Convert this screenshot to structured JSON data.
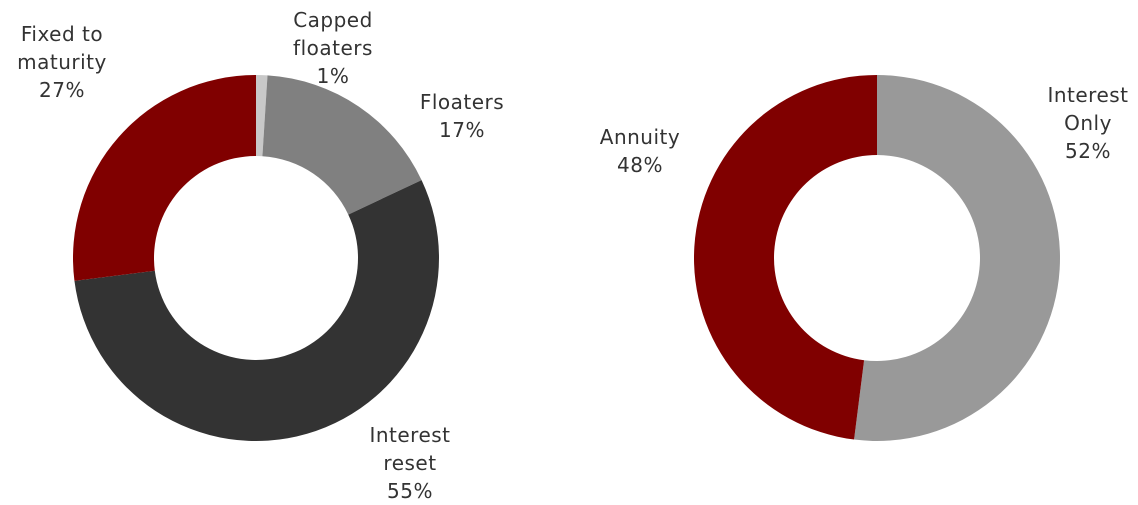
{
  "chart_data": [
    {
      "type": "donut",
      "categories": [
        "Capped floaters",
        "Floaters",
        "Interest reset",
        "Fixed to maturity"
      ],
      "values": [
        1,
        17,
        55,
        27
      ],
      "value_labels": [
        "1%",
        "17%",
        "55%",
        "27%"
      ],
      "colors": [
        "#c8c8c8",
        "#808080",
        "#333333",
        "#800000"
      ]
    },
    {
      "type": "donut",
      "categories": [
        "Interest Only",
        "Annuity"
      ],
      "values": [
        52,
        48
      ],
      "value_labels": [
        "52%",
        "48%"
      ],
      "colors": [
        "#999999",
        "#800000"
      ]
    }
  ]
}
